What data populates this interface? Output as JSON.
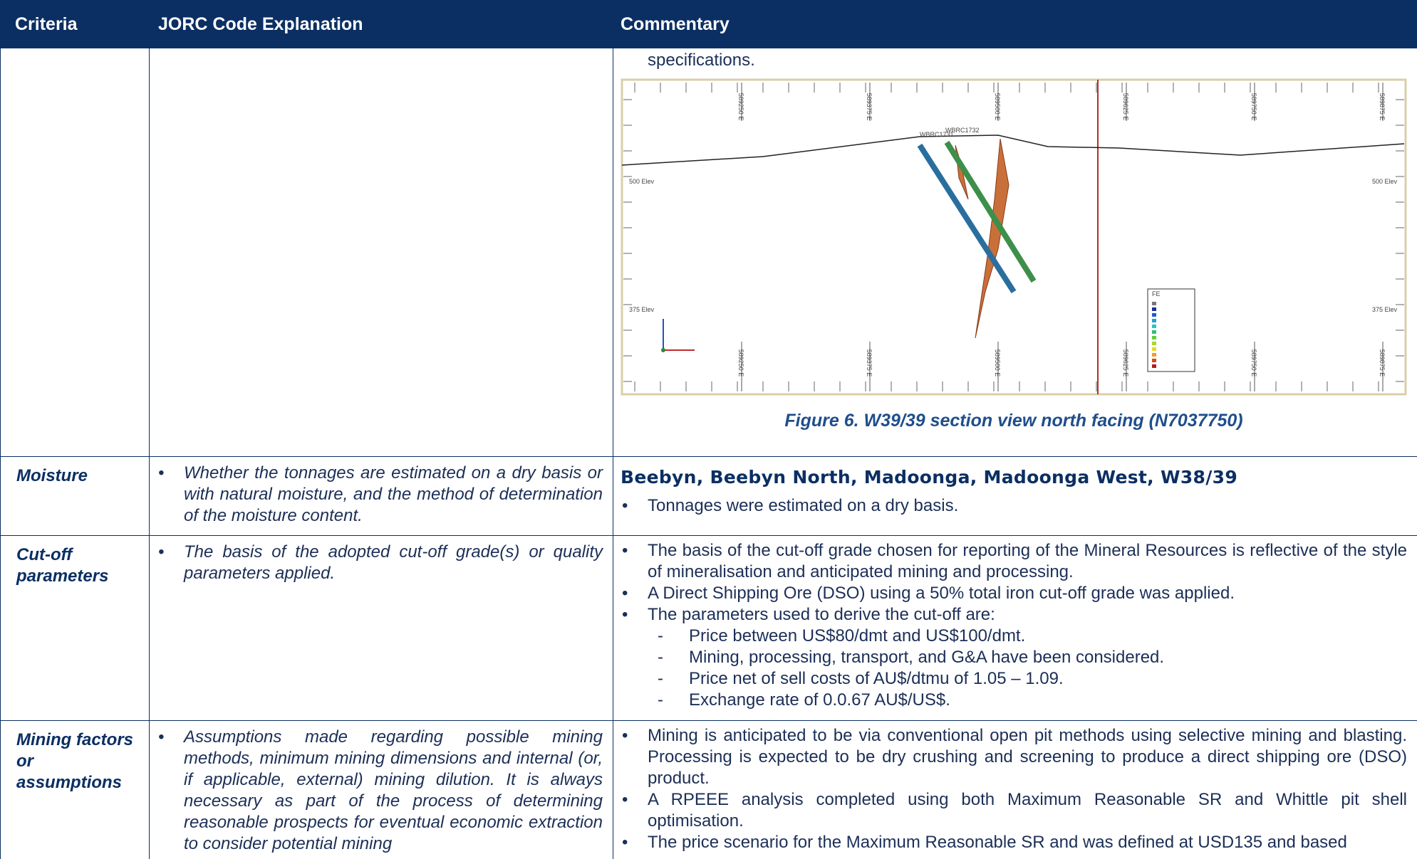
{
  "header": {
    "criteria": "Criteria",
    "explanation": "JORC Code Explanation",
    "commentary": "Commentary"
  },
  "rows": [
    {
      "commentary": {
        "text": "specifications.",
        "figure": {
          "elevations": [
            "500 Elev",
            "375 Elev"
          ],
          "eastings": [
            "589250 E",
            "589375 E",
            "589500 E",
            "589625 E",
            "589750 E",
            "589875 E"
          ],
          "holes": [
            "WBRC1731",
            "WBRC1732"
          ],
          "legend_title": "FE"
        },
        "caption": "Figure 6. W39/39 section view north facing (N7037750)"
      }
    },
    {
      "criteria": "Moisture",
      "explanation": [
        "Whether the tonnages are estimated on a dry basis or with natural moisture, and the method of determination of the moisture content."
      ],
      "commentary": {
        "heading": "Beebyn, Beebyn North, Madoonga, Madoonga West, W38/39",
        "bullets": [
          {
            "text": "Tonnages were estimated on a dry basis."
          }
        ]
      }
    },
    {
      "criteria": "Cut-off parameters",
      "explanation": [
        "The basis of the adopted cut-off grade(s) or quality parameters applied."
      ],
      "commentary": {
        "bullets": [
          {
            "text": "The basis of the cut-off grade chosen for reporting of the Mineral Resources is reflective of the style of mineralisation and anticipated mining and processing."
          },
          {
            "text": "A Direct Shipping Ore (DSO) using a 50% total iron cut-off grade was applied."
          },
          {
            "text": "The parameters used to derive the cut-off are:",
            "sub": [
              "Price between US$80/dmt and US$100/dmt.",
              "Mining, processing, transport, and G&A have been considered.",
              "Price net of sell costs of AU$/dtmu of 1.05 – 1.09.",
              "Exchange rate of 0.0.67 AU$/US$."
            ]
          }
        ]
      }
    },
    {
      "criteria": "Mining factors or assumptions",
      "explanation": [
        "Assumptions made regarding possible mining methods, minimum mining dimensions and internal (or, if applicable, external) mining dilution. It is always necessary as part of the process of determining reasonable prospects for eventual economic extraction to consider potential mining"
      ],
      "commentary": {
        "bullets": [
          {
            "text": "Mining is anticipated to be via conventional open pit methods using selective mining and blasting. Processing is expected to be dry crushing and screening to produce a direct shipping ore (DSO) product."
          },
          {
            "text": "A RPEEE analysis completed using both Maximum Reasonable SR and Whittle pit shell optimisation."
          },
          {
            "text": "The price scenario for the Maximum Reasonable SR and was defined at USD135 and based"
          }
        ]
      }
    }
  ]
}
